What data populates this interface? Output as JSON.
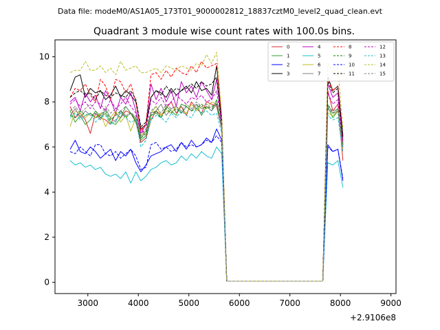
{
  "figure": {
    "suptitle": "Data file: modeM0/AS1A05_173T01_9000002812_18837cztM0_level2_quad_clean.evt"
  },
  "chart_data": {
    "type": "line",
    "title": "Quadrant 3 module wise count rates with 100.0s bins.",
    "xlabel": "",
    "ylabel": "",
    "x_offset_label": "+2.9106e8",
    "xlim": [
      2350,
      9100
    ],
    "ylim": [
      -0.5,
      10.75
    ],
    "xticks": [
      3000,
      4000,
      5000,
      6000,
      7000,
      8000,
      9000
    ],
    "yticks": [
      0,
      2,
      4,
      6,
      8,
      10
    ],
    "grid": false,
    "legend_position": "top-right",
    "x_start": 2650,
    "x_step": 100,
    "series": [
      {
        "name": "0",
        "color": "#d62728",
        "dash": "solid",
        "values": [
          7.8,
          7.3,
          7.5,
          7.2,
          6.6,
          7.5,
          7.3,
          7.2,
          7.0,
          7.5,
          7.3,
          7.6,
          7.5,
          7.1,
          6.2,
          6.4,
          7.2,
          7.6,
          7.4,
          7.7,
          8.0,
          7.5,
          7.8,
          7.4,
          8.0,
          7.7,
          7.5,
          8.0,
          7.9,
          7.8,
          6.8,
          0.05,
          0.05,
          0.05,
          0.05,
          0.05,
          0.05,
          0.05,
          0.05,
          0.05,
          0.05,
          0.05,
          0.05,
          0.05,
          0.05,
          0.05,
          0.05,
          0.05,
          0.05,
          0.05,
          0.05,
          8.5,
          7.6,
          7.9,
          5.4
        ]
      },
      {
        "name": "1",
        "color": "#2ca02c",
        "dash": "solid",
        "values": [
          7.6,
          7.1,
          7.4,
          7.0,
          7.2,
          7.6,
          7.3,
          7.5,
          7.1,
          7.0,
          7.3,
          7.8,
          7.5,
          7.2,
          6.3,
          6.5,
          7.4,
          7.5,
          7.3,
          7.8,
          7.6,
          7.4,
          7.9,
          7.8,
          7.6,
          7.9,
          7.4,
          7.8,
          7.6,
          8.1,
          6.9,
          0.05,
          0.05,
          0.05,
          0.05,
          0.05,
          0.05,
          0.05,
          0.05,
          0.05,
          0.05,
          0.05,
          0.05,
          0.05,
          0.05,
          0.05,
          0.05,
          0.05,
          0.05,
          0.05,
          0.05,
          7.8,
          7.3,
          7.6,
          6.1
        ]
      },
      {
        "name": "2",
        "color": "#0000ff",
        "dash": "solid",
        "values": [
          5.9,
          6.3,
          5.8,
          5.7,
          6.0,
          5.8,
          5.5,
          5.7,
          5.9,
          5.4,
          5.8,
          5.6,
          5.9,
          5.3,
          4.9,
          5.2,
          5.6,
          5.7,
          5.8,
          6.0,
          6.1,
          5.8,
          6.2,
          5.9,
          6.3,
          6.0,
          6.1,
          6.4,
          6.2,
          6.8,
          6.3,
          0.05,
          0.05,
          0.05,
          0.05,
          0.05,
          0.05,
          0.05,
          0.05,
          0.05,
          0.05,
          0.05,
          0.05,
          0.05,
          0.05,
          0.05,
          0.05,
          0.05,
          0.05,
          0.05,
          0.05,
          6.1,
          5.8,
          5.9,
          4.5
        ]
      },
      {
        "name": "3",
        "color": "#000000",
        "dash": "solid",
        "values": [
          8.5,
          9.1,
          9.2,
          8.2,
          8.6,
          8.4,
          8.5,
          8.1,
          8.3,
          8.7,
          8.2,
          8.5,
          8.3,
          8.0,
          6.8,
          7.0,
          8.2,
          8.5,
          8.4,
          8.2,
          8.6,
          8.3,
          8.5,
          8.7,
          8.4,
          8.9,
          8.5,
          8.6,
          8.3,
          9.6,
          7.2,
          0.05,
          0.05,
          0.05,
          0.05,
          0.05,
          0.05,
          0.05,
          0.05,
          0.05,
          0.05,
          0.05,
          0.05,
          0.05,
          0.05,
          0.05,
          0.05,
          0.05,
          0.05,
          0.05,
          0.05,
          9.1,
          8.5,
          8.7,
          6.5
        ]
      },
      {
        "name": "4",
        "color": "#bf00bf",
        "dash": "solid",
        "values": [
          8.0,
          8.2,
          7.6,
          8.4,
          8.0,
          8.3,
          7.7,
          8.5,
          8.1,
          7.5,
          8.2,
          7.9,
          8.4,
          7.6,
          6.6,
          7.0,
          8.8,
          8.1,
          8.6,
          8.0,
          8.5,
          7.8,
          8.9,
          8.4,
          8.7,
          8.2,
          8.9,
          8.5,
          8.1,
          9.0,
          7.0,
          0.05,
          0.05,
          0.05,
          0.05,
          0.05,
          0.05,
          0.05,
          0.05,
          0.05,
          0.05,
          0.05,
          0.05,
          0.05,
          0.05,
          0.05,
          0.05,
          0.05,
          0.05,
          0.05,
          0.05,
          8.8,
          8.2,
          8.4,
          6.2
        ]
      },
      {
        "name": "5",
        "color": "#17becf",
        "dash": "solid",
        "values": [
          5.4,
          5.2,
          5.3,
          5.1,
          5.2,
          5.0,
          5.1,
          4.8,
          4.7,
          4.8,
          4.6,
          4.9,
          4.4,
          4.9,
          4.5,
          4.7,
          5.0,
          5.1,
          5.3,
          5.4,
          5.2,
          5.3,
          5.6,
          5.4,
          5.7,
          5.5,
          5.8,
          5.6,
          5.5,
          6.0,
          5.7,
          0.05,
          0.05,
          0.05,
          0.05,
          0.05,
          0.05,
          0.05,
          0.05,
          0.05,
          0.05,
          0.05,
          0.05,
          0.05,
          0.05,
          0.05,
          0.05,
          0.05,
          0.05,
          0.05,
          0.05,
          5.3,
          5.2,
          5.4,
          4.2
        ]
      },
      {
        "name": "6",
        "color": "#bcbd22",
        "dash": "solid",
        "values": [
          6.9,
          7.6,
          7.5,
          7.3,
          7.5,
          7.3,
          7.5,
          6.9,
          7.3,
          7.6,
          7.1,
          7.4,
          6.7,
          7.3,
          6.5,
          6.7,
          7.5,
          7.8,
          7.4,
          7.6,
          7.5,
          7.8,
          7.6,
          7.5,
          7.9,
          7.6,
          7.8,
          7.7,
          8.0,
          7.9,
          6.9,
          0.05,
          0.05,
          0.05,
          0.05,
          0.05,
          0.05,
          0.05,
          0.05,
          0.05,
          0.05,
          0.05,
          0.05,
          0.05,
          0.05,
          0.05,
          0.05,
          0.05,
          0.05,
          0.05,
          0.05,
          7.5,
          7.4,
          7.6,
          5.9
        ]
      },
      {
        "name": "7",
        "color": "#7f7f7f",
        "dash": "solid",
        "values": [
          7.4,
          7.7,
          7.3,
          7.6,
          7.4,
          7.5,
          7.2,
          7.7,
          7.3,
          7.1,
          7.6,
          7.4,
          7.5,
          7.3,
          6.4,
          6.7,
          7.5,
          7.6,
          7.9,
          7.4,
          7.7,
          7.8,
          7.5,
          7.8,
          7.6,
          7.9,
          7.7,
          7.8,
          7.6,
          7.9,
          6.8,
          0.05,
          0.05,
          0.05,
          0.05,
          0.05,
          0.05,
          0.05,
          0.05,
          0.05,
          0.05,
          0.05,
          0.05,
          0.05,
          0.05,
          0.05,
          0.05,
          0.05,
          0.05,
          0.05,
          0.05,
          7.7,
          7.5,
          7.6,
          6.0
        ]
      },
      {
        "name": "8",
        "color": "#ff0000",
        "dash": "dashed",
        "values": [
          8.2,
          8.6,
          8.5,
          8.8,
          8.3,
          8.0,
          9.0,
          8.7,
          8.1,
          9.0,
          8.9,
          8.4,
          8.8,
          8.0,
          6.7,
          7.0,
          9.2,
          9.3,
          9.0,
          9.4,
          9.1,
          9.5,
          9.3,
          9.2,
          9.6,
          9.3,
          9.8,
          9.5,
          9.6,
          9.7,
          7.3,
          0.05,
          0.05,
          0.05,
          0.05,
          0.05,
          0.05,
          0.05,
          0.05,
          0.05,
          0.05,
          0.05,
          0.05,
          0.05,
          0.05,
          0.05,
          0.05,
          0.05,
          0.05,
          0.05,
          0.05,
          9.0,
          8.5,
          8.7,
          6.3
        ]
      },
      {
        "name": "9",
        "color": "#008000",
        "dash": "dashed",
        "values": [
          7.4,
          7.3,
          7.6,
          7.4,
          7.5,
          7.3,
          7.4,
          7.6,
          7.2,
          7.4,
          7.6,
          7.3,
          7.5,
          7.1,
          6.4,
          6.6,
          7.4,
          7.6,
          7.3,
          7.7,
          7.5,
          7.7,
          7.5,
          7.8,
          7.6,
          7.7,
          7.9,
          7.7,
          7.8,
          7.9,
          6.9,
          0.05,
          0.05,
          0.05,
          0.05,
          0.05,
          0.05,
          0.05,
          0.05,
          0.05,
          0.05,
          0.05,
          0.05,
          0.05,
          0.05,
          0.05,
          0.05,
          0.05,
          0.05,
          0.05,
          0.05,
          7.9,
          7.5,
          7.7,
          6.1
        ]
      },
      {
        "name": "10",
        "color": "#0000ff",
        "dash": "dashed",
        "values": [
          5.8,
          5.7,
          6.0,
          5.8,
          5.6,
          6.1,
          6.1,
          5.7,
          5.6,
          5.8,
          5.5,
          5.7,
          5.9,
          5.6,
          5.0,
          5.1,
          6.1,
          6.2,
          5.9,
          6.0,
          5.8,
          5.9,
          6.2,
          6.0,
          6.1,
          6.0,
          6.1,
          6.3,
          6.2,
          6.5,
          6.2,
          0.05,
          0.05,
          0.05,
          0.05,
          0.05,
          0.05,
          0.05,
          0.05,
          0.05,
          0.05,
          0.05,
          0.05,
          0.05,
          0.05,
          0.05,
          0.05,
          0.05,
          0.05,
          0.05,
          0.05,
          6.0,
          5.8,
          5.9,
          4.6
        ]
      },
      {
        "name": "11",
        "color": "#000000",
        "dash": "dashed",
        "values": [
          8.2,
          8.4,
          8.5,
          8.3,
          8.4,
          8.1,
          8.5,
          8.3,
          8.2,
          8.4,
          8.3,
          8.2,
          8.5,
          8.1,
          6.9,
          7.1,
          8.2,
          8.5,
          8.3,
          8.7,
          8.4,
          8.6,
          8.5,
          8.6,
          8.8,
          8.6,
          8.9,
          8.7,
          8.8,
          9.1,
          7.1,
          0.05,
          0.05,
          0.05,
          0.05,
          0.05,
          0.05,
          0.05,
          0.05,
          0.05,
          0.05,
          0.05,
          0.05,
          0.05,
          0.05,
          0.05,
          0.05,
          0.05,
          0.05,
          0.05,
          0.05,
          8.9,
          8.4,
          8.6,
          6.4
        ]
      },
      {
        "name": "12",
        "color": "#bf00bf",
        "dash": "dashed",
        "values": [
          7.9,
          8.1,
          7.8,
          8.0,
          7.7,
          8.0,
          7.9,
          7.6,
          8.1,
          7.7,
          7.9,
          8.2,
          7.8,
          7.5,
          6.6,
          6.8,
          8.1,
          7.9,
          8.2,
          7.8,
          8.0,
          8.3,
          8.1,
          7.9,
          8.2,
          8.1,
          8.3,
          8.0,
          8.1,
          8.5,
          7.0,
          0.05,
          0.05,
          0.05,
          0.05,
          0.05,
          0.05,
          0.05,
          0.05,
          0.05,
          0.05,
          0.05,
          0.05,
          0.05,
          0.05,
          0.05,
          0.05,
          0.05,
          0.05,
          0.05,
          0.05,
          8.4,
          7.9,
          8.1,
          6.2
        ]
      },
      {
        "name": "13",
        "color": "#17becf",
        "dash": "dashed",
        "values": [
          7.3,
          7.5,
          7.2,
          7.4,
          7.5,
          7.1,
          7.3,
          7.4,
          7.0,
          7.2,
          7.5,
          7.3,
          7.1,
          7.2,
          6.0,
          6.3,
          7.2,
          7.4,
          7.3,
          7.1,
          7.5,
          7.3,
          7.6,
          7.4,
          7.3,
          7.7,
          7.5,
          7.6,
          7.4,
          7.5,
          6.6,
          0.05,
          0.05,
          0.05,
          0.05,
          0.05,
          0.05,
          0.05,
          0.05,
          0.05,
          0.05,
          0.05,
          0.05,
          0.05,
          0.05,
          0.05,
          0.05,
          0.05,
          0.05,
          0.05,
          0.05,
          7.4,
          7.2,
          7.3,
          5.8
        ]
      },
      {
        "name": "14",
        "color": "#bcbd22",
        "dash": "dashed",
        "values": [
          9.3,
          9.4,
          9.4,
          9.8,
          9.4,
          9.4,
          9.6,
          9.3,
          9.5,
          9.2,
          9.8,
          9.4,
          9.5,
          9.6,
          9.3,
          9.3,
          9.4,
          9.5,
          9.3,
          9.6,
          9.5,
          9.4,
          9.6,
          9.5,
          9.4,
          9.7,
          9.6,
          10.1,
          9.7,
          10.2,
          7.4,
          0.05,
          0.05,
          0.05,
          0.05,
          0.05,
          0.05,
          0.05,
          0.05,
          0.05,
          0.05,
          0.05,
          0.05,
          0.05,
          0.05,
          0.05,
          0.05,
          0.05,
          0.05,
          0.05,
          0.05,
          9.7,
          9.3,
          9.5,
          6.8
        ]
      },
      {
        "name": "15",
        "color": "#7f7f7f",
        "dash": "dashed",
        "values": [
          7.6,
          7.8,
          7.5,
          7.7,
          7.9,
          7.6,
          7.4,
          7.8,
          7.5,
          7.7,
          7.6,
          7.8,
          7.5,
          7.4,
          6.5,
          6.8,
          7.6,
          7.8,
          7.5,
          7.9,
          7.7,
          7.8,
          7.6,
          7.9,
          7.7,
          8.0,
          7.8,
          7.9,
          7.7,
          8.0,
          6.9,
          0.05,
          0.05,
          0.05,
          0.05,
          0.05,
          0.05,
          0.05,
          0.05,
          0.05,
          0.05,
          0.05,
          0.05,
          0.05,
          0.05,
          0.05,
          0.05,
          0.05,
          0.05,
          0.05,
          0.05,
          7.8,
          7.6,
          7.7,
          6.0
        ]
      }
    ]
  }
}
